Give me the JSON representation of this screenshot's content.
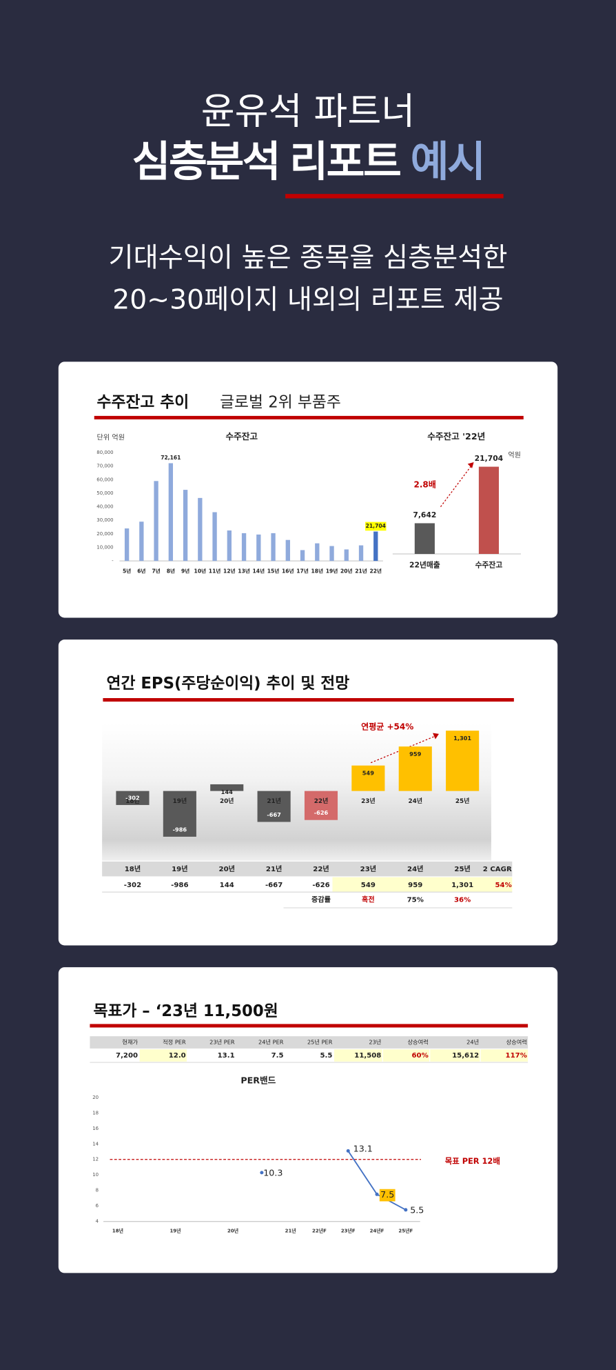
{
  "header": {
    "line1": "윤유석 파트너",
    "line2": [
      "심층분석",
      "리포트",
      "예시"
    ],
    "subtitle": [
      "기대수익이 높은 종목을 심층분석한",
      "20~30페이지 내외의 리포트 제공"
    ]
  },
  "cards": [
    {
      "title": "수주잔고 추이",
      "subtitle": "글로벌 2위 부품주"
    },
    {
      "title": "연간 EPS(주당순이익) 추이 및 전망",
      "table": {
        "extra_header": "2 CAGR",
        "extra_value": "54%",
        "growth_label": "증감률",
        "growth": [
          "흑전",
          "75%",
          "36%"
        ]
      }
    },
    {
      "title": "목표가 – ‘23년 11,500원",
      "table": {
        "header": [
          "현재가",
          "적정 PER",
          "23년 PER",
          "24년 PER",
          "25년 PER",
          "23년",
          "상승여력",
          "24년",
          "상승여력"
        ],
        "rows": [
          [
            "7,200",
            "12.0",
            "13.1",
            "7.5",
            "5.5",
            "11,508",
            "60%",
            "15,612",
            "117%"
          ]
        ]
      }
    }
  ],
  "chart_data": [
    {
      "type": "bar",
      "title": "수주잔고",
      "unit": "단위 억원",
      "categories": [
        "5년",
        "6년",
        "7년",
        "8년",
        "9년",
        "10년",
        "11년",
        "12년",
        "13년",
        "14년",
        "15년",
        "16년",
        "17년",
        "18년",
        "19년",
        "20년",
        "21년",
        "22년"
      ],
      "values": [
        24000,
        29000,
        59000,
        72161,
        52500,
        46500,
        36000,
        22500,
        20500,
        19500,
        20500,
        15500,
        8000,
        13000,
        11000,
        8500,
        11500,
        21704
      ],
      "value_labels": [
        null,
        null,
        null,
        "72,161",
        null,
        null,
        null,
        null,
        null,
        null,
        null,
        null,
        null,
        null,
        null,
        null,
        null,
        "21,704"
      ],
      "label_backgrounds": [
        null,
        null,
        null,
        null,
        null,
        null,
        null,
        null,
        null,
        null,
        null,
        null,
        null,
        null,
        null,
        null,
        null,
        "#ffff00"
      ],
      "colors": [
        "#8faadc",
        "#8faadc",
        "#8faadc",
        "#8faadc",
        "#8faadc",
        "#8faadc",
        "#8faadc",
        "#8faadc",
        "#8faadc",
        "#8faadc",
        "#8faadc",
        "#8faadc",
        "#8faadc",
        "#8faadc",
        "#8faadc",
        "#8faadc",
        "#8faadc",
        "#4472c4"
      ],
      "ylim": [
        0,
        80000
      ],
      "yticks": [
        {
          "value": 0,
          "label": "-"
        },
        {
          "value": 10000,
          "label": "10,000"
        },
        {
          "value": 20000,
          "label": "20,000"
        },
        {
          "value": 30000,
          "label": "30,000"
        },
        {
          "value": 40000,
          "label": "40,000"
        },
        {
          "value": 50000,
          "label": "50,000"
        },
        {
          "value": 60000,
          "label": "60,000"
        },
        {
          "value": 70000,
          "label": "70,000"
        },
        {
          "value": 80000,
          "label": "80,000"
        }
      ]
    },
    {
      "type": "bar",
      "title": "수주잔고 '22년",
      "unit": "억원",
      "annotation": "2.8배",
      "categories": [
        "22년매출",
        "수주잔고"
      ],
      "values": [
        7642,
        21704
      ],
      "value_labels": [
        "7,642",
        "21,704"
      ],
      "colors": [
        "#595959",
        "#c0504d"
      ],
      "ylim": [
        0,
        25000
      ]
    },
    {
      "type": "bar",
      "annotation": "연평균 +54%",
      "categories": [
        "18년",
        "19년",
        "20년",
        "21년",
        "22년",
        "23년",
        "24년",
        "25년"
      ],
      "values": [
        -302,
        -986,
        144,
        -667,
        -626,
        549,
        959,
        1301
      ],
      "value_labels": [
        "-302",
        "-986",
        "144",
        "-667",
        "-626",
        "549",
        "959",
        "1,301"
      ],
      "colors": [
        "#595959",
        "#595959",
        "#595959",
        "#595959",
        "#d46a6a",
        "#ffc000",
        "#ffc000",
        "#ffc000"
      ],
      "ylim": [
        -1200,
        1400
      ]
    },
    {
      "type": "line",
      "title": "PER밴드",
      "xlim": [
        0.5,
        11.5
      ],
      "xticks": [
        {
          "value": 1,
          "label": "18년"
        },
        {
          "value": 3,
          "label": "19년"
        },
        {
          "value": 5,
          "label": "20년"
        },
        {
          "value": 7,
          "label": "21년"
        },
        {
          "value": 8,
          "label": "22년F"
        },
        {
          "value": 9,
          "label": "23년F"
        },
        {
          "value": 10,
          "label": "24년F"
        },
        {
          "value": 11,
          "label": "25년F"
        }
      ],
      "ylim": [
        4,
        20
      ],
      "yticks": [
        4,
        6,
        8,
        10,
        12,
        14,
        16,
        18,
        20
      ],
      "reference": {
        "value": 12,
        "label": "목표 PER 12배",
        "color": "#c00000"
      },
      "series": [
        {
          "color": "#4472c4",
          "x": [
            6
          ],
          "values": [
            10.3
          ]
        },
        {
          "color": "#4472c4",
          "x": [
            9,
            10,
            11
          ],
          "values": [
            13.1,
            7.5,
            5.5
          ],
          "label_backgrounds": [
            null,
            "#ffc000",
            null
          ]
        }
      ]
    }
  ]
}
